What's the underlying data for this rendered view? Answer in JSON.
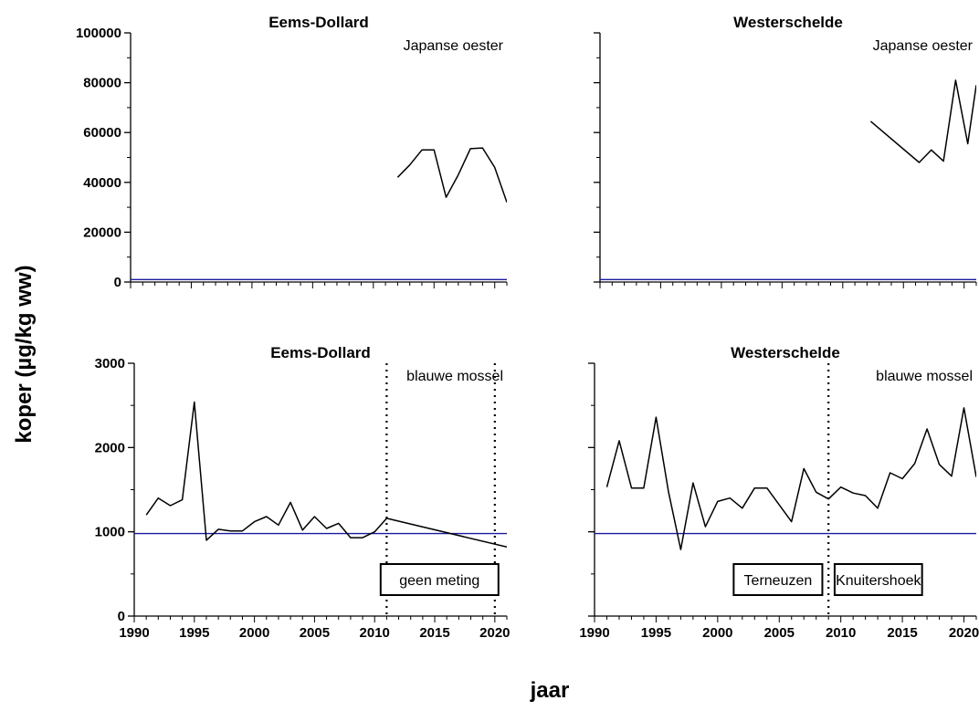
{
  "ylabel": "koper (µg/kg ww)",
  "xlabel": "jaar",
  "colors": {
    "series": "#000000",
    "threshold": "#1a1aa0"
  },
  "chart_data": [
    {
      "type": "line",
      "title": "Eems-Dollard",
      "annotation": "Japanse oester",
      "xlim": [
        1990,
        2021
      ],
      "ylim": [
        0,
        100000
      ],
      "yticks": [
        0,
        20000,
        40000,
        60000,
        80000,
        100000
      ],
      "ytick_labels": [
        "0",
        "20000",
        "40000",
        "60000",
        "80000",
        "100000"
      ],
      "xticks": [],
      "xtick_labels": [],
      "threshold": 980,
      "vlines": [],
      "boxes": [],
      "series": [
        {
          "x": [
            2012,
            2013,
            2014,
            2015,
            2016,
            2017,
            2018,
            2019,
            2020,
            2021
          ],
          "values": [
            42000,
            47000,
            53000,
            53000,
            34000,
            43000,
            53500,
            53800,
            46000,
            32000
          ]
        }
      ]
    },
    {
      "type": "line",
      "title": "Westerschelde",
      "annotation": "Japanse oester",
      "xlim": [
        1990,
        2021
      ],
      "ylim": [
        0,
        100000
      ],
      "yticks": [
        0,
        20000,
        40000,
        60000,
        80000,
        100000
      ],
      "ytick_labels": [],
      "xticks": [],
      "xtick_labels": [],
      "threshold": 980,
      "vlines": [],
      "boxes": [],
      "series": [
        {
          "x": [
            2012.3,
            2016.3,
            2017.3,
            2018.3,
            2019.3,
            2020.3,
            2021
          ],
          "values": [
            64500,
            48000,
            53000,
            48500,
            81000,
            55500,
            79000
          ]
        }
      ]
    },
    {
      "type": "line",
      "title": "Eems-Dollard",
      "annotation": "blauwe mossel",
      "xlim": [
        1990,
        2021
      ],
      "ylim": [
        0,
        3000
      ],
      "yticks": [
        0,
        1000,
        2000,
        3000
      ],
      "ytick_labels": [
        "0",
        "1000",
        "2000",
        "3000"
      ],
      "xticks": [
        1990,
        1995,
        2000,
        2005,
        2010,
        2015,
        2020
      ],
      "xtick_labels": [
        "1990",
        "1995",
        "2000",
        "2005",
        "2010",
        "2015",
        "2020"
      ],
      "threshold": 980,
      "vlines": [
        2011,
        2020
      ],
      "boxes": [
        {
          "label": "geen meting",
          "x_from": 2010.5,
          "x_to": 2020.3
        }
      ],
      "series": [
        {
          "x": [
            1991,
            1992,
            1993,
            1994,
            1995,
            1996,
            1997,
            1998,
            1999,
            2000,
            2001,
            2002,
            2003,
            2004,
            2005,
            2006,
            2007,
            2008,
            2009,
            2010,
            2011,
            2021
          ],
          "values": [
            1200,
            1400,
            1310,
            1380,
            2540,
            900,
            1030,
            1010,
            1010,
            1120,
            1180,
            1080,
            1350,
            1020,
            1180,
            1040,
            1100,
            930,
            930,
            1000,
            1160,
            820
          ]
        }
      ]
    },
    {
      "type": "line",
      "title": "Westerschelde",
      "annotation": "blauwe mossel",
      "xlim": [
        1990,
        2021
      ],
      "ylim": [
        0,
        3000
      ],
      "yticks": [
        0,
        1000,
        2000,
        3000
      ],
      "ytick_labels": [],
      "xticks": [
        1990,
        1995,
        2000,
        2005,
        2010,
        2015,
        2020
      ],
      "xtick_labels": [
        "1990",
        "1995",
        "2000",
        "2005",
        "2010",
        "2015",
        "2020"
      ],
      "threshold": 980,
      "vlines": [
        2009
      ],
      "boxes": [
        {
          "label": "Terneuzen",
          "x_from": 2001.3,
          "x_to": 2008.5
        },
        {
          "label": "Knuitershoek",
          "x_from": 2009.5,
          "x_to": 2016.6
        }
      ],
      "series": [
        {
          "x": [
            1991,
            1992,
            1993,
            1994,
            1995,
            1996,
            1997,
            1998,
            1999,
            2000,
            2001,
            2002,
            2003,
            2004,
            2006,
            2007,
            2008,
            2009,
            2010,
            2011,
            2012,
            2013,
            2014,
            2015,
            2016,
            2017,
            2018,
            2019,
            2020,
            2021
          ],
          "values": [
            1530,
            2080,
            1520,
            1520,
            2360,
            1480,
            790,
            1580,
            1060,
            1360,
            1400,
            1280,
            1520,
            1520,
            1120,
            1750,
            1470,
            1390,
            1530,
            1460,
            1430,
            1280,
            1700,
            1630,
            1810,
            2220,
            1800,
            1660,
            2470,
            1650
          ]
        }
      ]
    }
  ]
}
